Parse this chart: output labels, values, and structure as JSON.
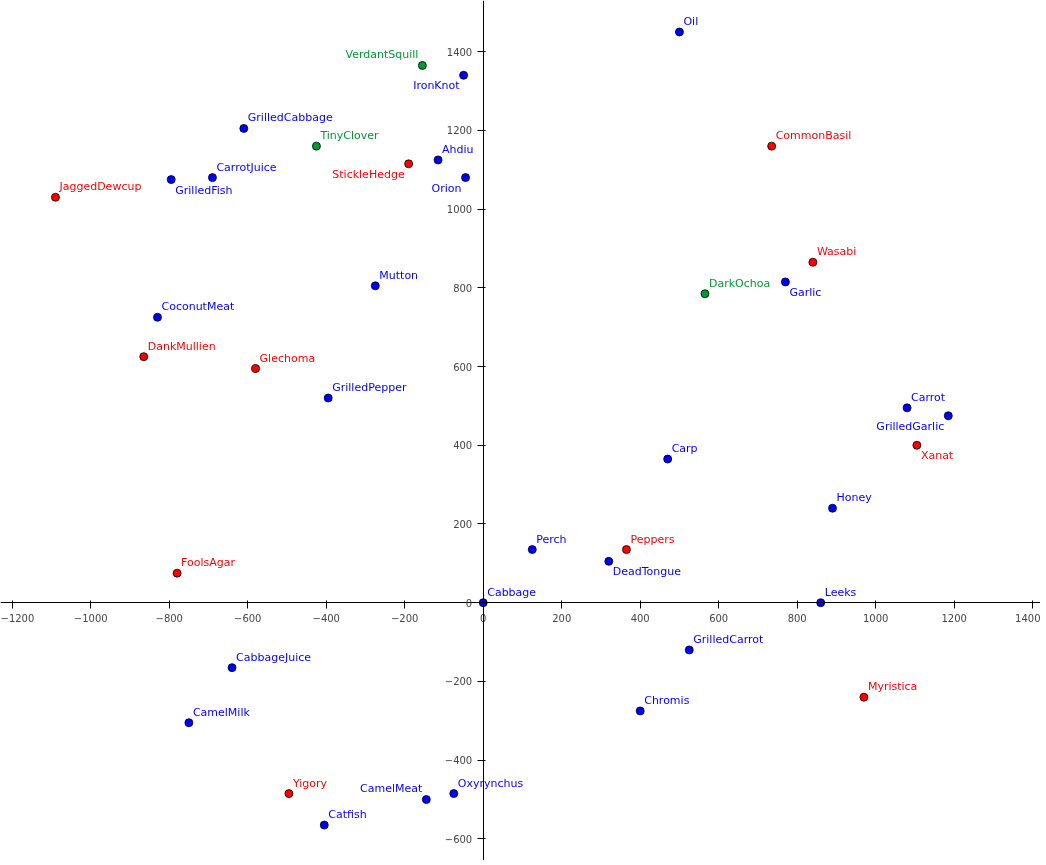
{
  "chart_data": {
    "type": "scatter",
    "xlim": [
      -1230,
      1420
    ],
    "ylim": [
      -655,
      1530
    ],
    "xticks": [
      -1200,
      -1000,
      -800,
      -600,
      -400,
      -200,
      0,
      200,
      400,
      600,
      800,
      1000,
      1200,
      1400
    ],
    "yticks": [
      -600,
      -400,
      -200,
      0,
      200,
      400,
      600,
      800,
      1000,
      1200,
      1400
    ],
    "grid": false,
    "legend": false,
    "marker": "circle",
    "series": [
      {
        "name": "Oil",
        "color": "#0000ff",
        "x": [
          500
        ],
        "values": [
          1450
        ]
      },
      {
        "name": "IronKnot",
        "color": "#0000ff",
        "x": [
          -50
        ],
        "values": [
          1340
        ]
      },
      {
        "name": "GrilledCabbage",
        "color": "#0000ff",
        "x": [
          -610
        ],
        "values": [
          1205
        ]
      },
      {
        "name": "Ahdiu",
        "color": "#0000ff",
        "x": [
          -115
        ],
        "values": [
          1125
        ]
      },
      {
        "name": "Orion",
        "color": "#0000ff",
        "x": [
          -45
        ],
        "values": [
          1080
        ]
      },
      {
        "name": "GrilledFish",
        "color": "#0000ff",
        "x": [
          -795
        ],
        "values": [
          1075
        ]
      },
      {
        "name": "CarrotJuice",
        "color": "#0000ff",
        "x": [
          -690
        ],
        "values": [
          1080
        ]
      },
      {
        "name": "Mutton",
        "color": "#0000ff",
        "x": [
          -275
        ],
        "values": [
          805
        ]
      },
      {
        "name": "CoconutMeat",
        "color": "#0000ff",
        "x": [
          -830
        ],
        "values": [
          725
        ]
      },
      {
        "name": "GrilledPepper",
        "color": "#0000ff",
        "x": [
          -395
        ],
        "values": [
          520
        ]
      },
      {
        "name": "Garlic",
        "color": "#0000ff",
        "x": [
          770
        ],
        "values": [
          815
        ]
      },
      {
        "name": "Carrot",
        "color": "#0000ff",
        "x": [
          1080
        ],
        "values": [
          495
        ]
      },
      {
        "name": "GrilledGarlic",
        "color": "#0000ff",
        "x": [
          1185
        ],
        "values": [
          475
        ]
      },
      {
        "name": "Carp",
        "color": "#0000ff",
        "x": [
          470
        ],
        "values": [
          365
        ]
      },
      {
        "name": "Honey",
        "color": "#0000ff",
        "x": [
          890
        ],
        "values": [
          240
        ]
      },
      {
        "name": "Perch",
        "color": "#0000ff",
        "x": [
          125
        ],
        "values": [
          135
        ]
      },
      {
        "name": "DeadTongue",
        "color": "#0000ff",
        "x": [
          320
        ],
        "values": [
          105
        ]
      },
      {
        "name": "Cabbage",
        "color": "#0000ff",
        "x": [
          0
        ],
        "values": [
          0
        ]
      },
      {
        "name": "Leeks",
        "color": "#0000ff",
        "x": [
          860
        ],
        "values": [
          0
        ]
      },
      {
        "name": "GrilledCarrot",
        "color": "#0000ff",
        "x": [
          525
        ],
        "values": [
          -120
        ]
      },
      {
        "name": "Chromis",
        "color": "#0000ff",
        "x": [
          400
        ],
        "values": [
          -275
        ]
      },
      {
        "name": "CabbageJuice",
        "color": "#0000ff",
        "x": [
          -640
        ],
        "values": [
          -165
        ]
      },
      {
        "name": "CamelMilk",
        "color": "#0000ff",
        "x": [
          -750
        ],
        "values": [
          -305
        ]
      },
      {
        "name": "CamelMeat",
        "color": "#0000ff",
        "x": [
          -145
        ],
        "values": [
          -500
        ]
      },
      {
        "name": "Oxyrynchus",
        "color": "#0000ff",
        "x": [
          -75
        ],
        "values": [
          -485
        ]
      },
      {
        "name": "Catfish",
        "color": "#0000ff",
        "x": [
          -405
        ],
        "values": [
          -565
        ]
      },
      {
        "name": "StickleHedge",
        "color": "#ff0000",
        "x": [
          -190
        ],
        "values": [
          1115
        ]
      },
      {
        "name": "CommonBasil",
        "color": "#ff0000",
        "x": [
          735
        ],
        "values": [
          1160
        ]
      },
      {
        "name": "JaggedDewcup",
        "color": "#ff0000",
        "x": [
          -1090
        ],
        "values": [
          1030
        ]
      },
      {
        "name": "Wasabi",
        "color": "#ff0000",
        "x": [
          840
        ],
        "values": [
          865
        ]
      },
      {
        "name": "DankMullien",
        "color": "#ff0000",
        "x": [
          -865
        ],
        "values": [
          625
        ]
      },
      {
        "name": "Glechoma",
        "color": "#ff0000",
        "x": [
          -580
        ],
        "values": [
          595
        ]
      },
      {
        "name": "Xanat",
        "color": "#ff0000",
        "x": [
          1105
        ],
        "values": [
          400
        ]
      },
      {
        "name": "Peppers",
        "color": "#ff0000",
        "x": [
          365
        ],
        "values": [
          135
        ]
      },
      {
        "name": "FoolsAgar",
        "color": "#ff0000",
        "x": [
          -780
        ],
        "values": [
          75
        ]
      },
      {
        "name": "Myristica",
        "color": "#ff0000",
        "x": [
          970
        ],
        "values": [
          -240
        ]
      },
      {
        "name": "Yigory",
        "color": "#ff0000",
        "x": [
          -495
        ],
        "values": [
          -485
        ]
      },
      {
        "name": "VerdantSquill",
        "color": "#009933",
        "x": [
          -155
        ],
        "values": [
          1365
        ]
      },
      {
        "name": "TinyClover",
        "color": "#009933",
        "x": [
          -425
        ],
        "values": [
          1160
        ]
      },
      {
        "name": "DarkOchoa",
        "color": "#009933",
        "x": [
          565
        ],
        "values": [
          785
        ]
      }
    ]
  }
}
